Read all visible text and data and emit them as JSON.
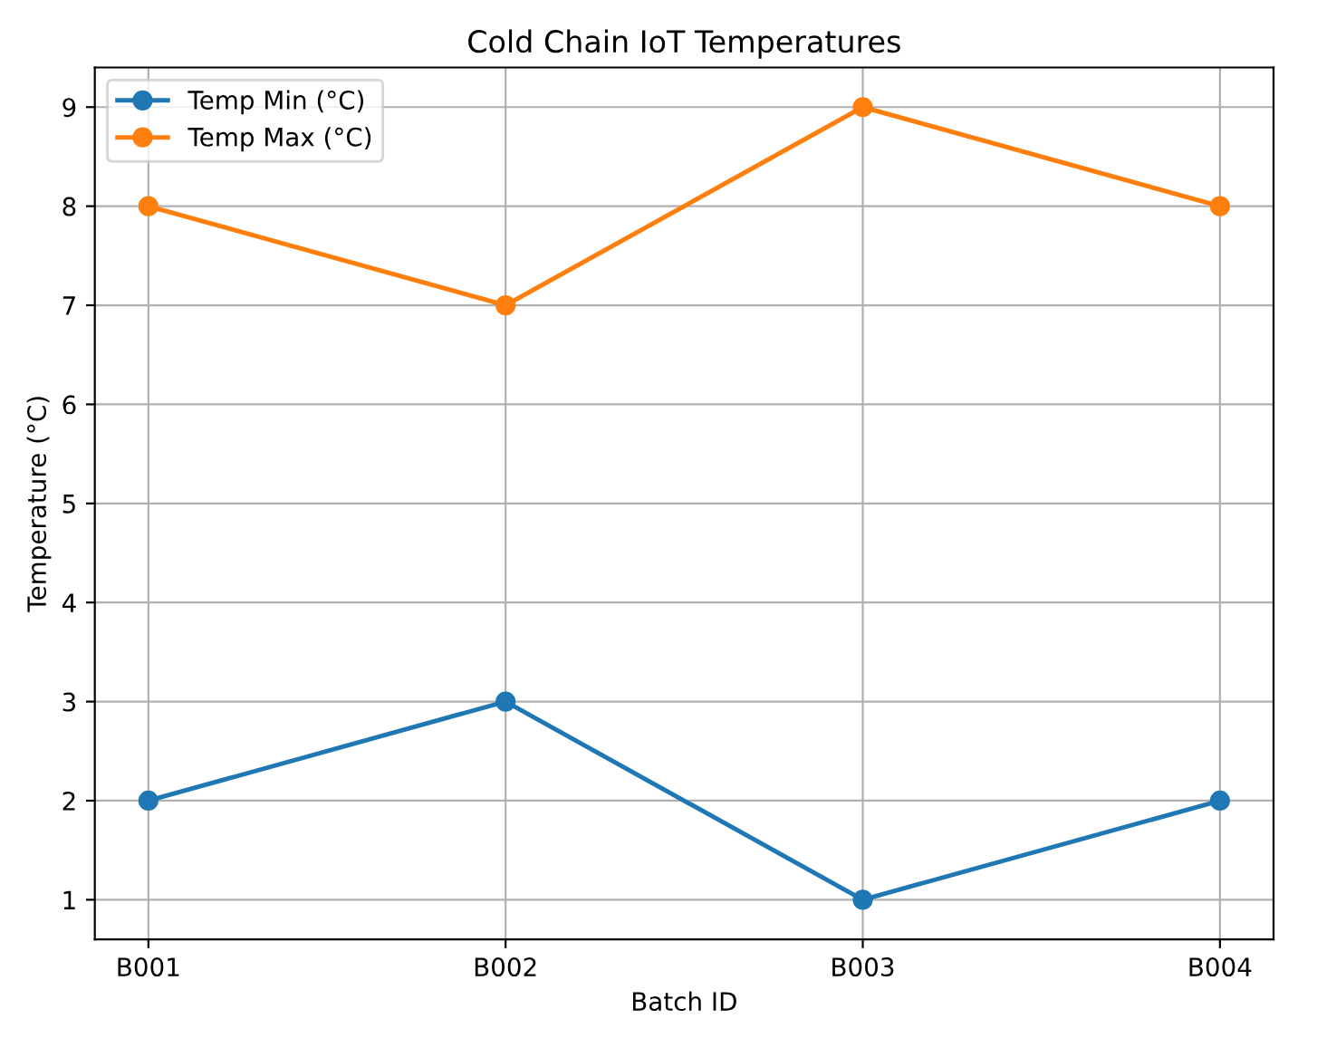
{
  "chart_data": {
    "type": "line",
    "title": "Cold Chain IoT Temperatures",
    "xlabel": "Batch ID",
    "ylabel": "Temperature (°C)",
    "categories": [
      "B001",
      "B002",
      "B003",
      "B004"
    ],
    "series": [
      {
        "name": "Temp Min (°C)",
        "color": "#1f77b4",
        "values": [
          2,
          3,
          1,
          2
        ]
      },
      {
        "name": "Temp Max (°C)",
        "color": "#ff7f0e",
        "values": [
          8,
          7,
          9,
          8
        ]
      }
    ],
    "ylim": [
      0.6,
      9.4
    ],
    "yticks": [
      1,
      2,
      3,
      4,
      5,
      6,
      7,
      8,
      9
    ],
    "grid": true,
    "legend": "top left",
    "marker": "circle",
    "line_style": "solid"
  }
}
